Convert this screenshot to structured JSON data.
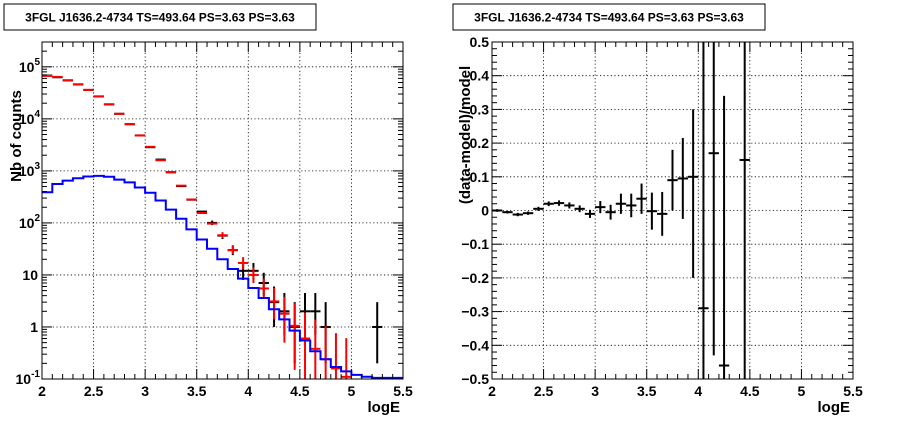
{
  "chart_data": [
    {
      "type": "line",
      "title": "3FGL J1636.2-4734 TS=493.64 PS=3.63 PS=3.63",
      "xlabel": "logE",
      "ylabel": "Nb of counts",
      "xlim": [
        2,
        5.5
      ],
      "ylim": [
        0.1,
        300000
      ],
      "log_y": true,
      "grid": true,
      "x_ticks": [
        "2",
        "2.5",
        "3",
        "3.5",
        "4",
        "4.5",
        "5",
        "5.5"
      ],
      "y_ticks": [
        "10^{-1}",
        "1",
        "10",
        "10^{2}",
        "10^{3}",
        "10^{4}",
        "10^{5}"
      ],
      "series": [
        {
          "color": "#000000",
          "style": "errorbars",
          "x": [
            2.05,
            2.15,
            2.25,
            2.35,
            2.45,
            2.55,
            2.65,
            2.75,
            2.85,
            2.95,
            3.05,
            3.15,
            3.25,
            3.35,
            3.45,
            3.55,
            3.65,
            3.75,
            3.85,
            3.95,
            4.05,
            4.15,
            4.25,
            4.35,
            4.45,
            4.55,
            4.65,
            4.75,
            5.25
          ],
          "y": [
            68000,
            63000,
            55000,
            46000,
            36000,
            27000,
            19000,
            12500,
            7900,
            4800,
            2850,
            1650,
            940,
            510,
            280,
            165,
            100,
            57,
            30,
            12,
            12,
            7,
            3,
            2,
            1,
            2,
            2,
            1,
            1
          ],
          "err_lo": [
            0,
            0,
            0,
            0,
            0,
            0,
            0,
            0,
            0,
            0,
            0,
            0,
            0,
            0,
            0,
            0,
            9,
            8,
            6,
            4,
            4,
            3,
            2,
            1.3,
            0.8,
            1.3,
            1.3,
            0.8,
            0.8
          ],
          "err_hi": [
            0,
            0,
            0,
            0,
            0,
            0,
            0,
            0,
            0,
            0,
            0,
            0,
            0,
            0,
            0,
            0,
            11,
            9,
            7,
            5,
            5,
            4,
            3,
            2.5,
            2,
            2.5,
            2.5,
            2,
            2
          ]
        },
        {
          "color": "#ff0000",
          "style": "errorbars",
          "x": [
            2.05,
            2.15,
            2.25,
            2.35,
            2.45,
            2.55,
            2.65,
            2.75,
            2.85,
            2.95,
            3.05,
            3.15,
            3.25,
            3.35,
            3.45,
            3.55,
            3.65,
            3.75,
            3.85,
            3.95,
            4.05,
            4.15,
            4.25,
            4.35,
            4.45,
            4.55,
            4.65,
            4.75,
            4.85,
            4.95
          ],
          "y": [
            67000,
            64000,
            55000,
            46000,
            36000,
            27000,
            19000,
            12500,
            7900,
            4800,
            2900,
            1600,
            950,
            520,
            280,
            155,
            97,
            58,
            30,
            17,
            10,
            5.5,
            3.1,
            1.8,
            1.05,
            0.6,
            0.38,
            0.24,
            0.16,
            0.11
          ],
          "err_lo": [
            0,
            0,
            0,
            0,
            0,
            0,
            0,
            0,
            0,
            0,
            0,
            0,
            0,
            0,
            0,
            0,
            0,
            7,
            5,
            4,
            3,
            2,
            1.7,
            1.3,
            0.9,
            0.55,
            0.36,
            0.23,
            0.155,
            0.1
          ],
          "err_hi": [
            0,
            0,
            0,
            0,
            0,
            0,
            0,
            0,
            0,
            0,
            0,
            0,
            0,
            0,
            0,
            0,
            0,
            8,
            6,
            5,
            4,
            3,
            2.5,
            2,
            1.8,
            1.3,
            1,
            0.8,
            0.6,
            0.5
          ]
        },
        {
          "color": "#0000ff",
          "style": "step",
          "x": [
            2.05,
            2.15,
            2.25,
            2.35,
            2.45,
            2.55,
            2.65,
            2.75,
            2.85,
            2.95,
            3.05,
            3.15,
            3.25,
            3.35,
            3.45,
            3.55,
            3.65,
            3.75,
            3.85,
            3.95,
            4.05,
            4.15,
            4.25,
            4.35,
            4.45,
            4.55,
            4.65,
            4.75,
            4.85,
            4.95,
            5.05,
            5.15,
            5.25,
            5.35,
            5.45
          ],
          "y": [
            390,
            560,
            650,
            720,
            780,
            800,
            770,
            680,
            600,
            480,
            380,
            270,
            180,
            120,
            75,
            48,
            32,
            20,
            13,
            8.5,
            5.6,
            3.6,
            2.2,
            1.4,
            0.85,
            0.55,
            0.34,
            0.24,
            0.17,
            0.14,
            0.12,
            0.11,
            0.105,
            0.105,
            0.105
          ]
        }
      ]
    },
    {
      "type": "scatter",
      "title": "3FGL J1636.2-4734 TS=493.64 PS=3.63 PS=3.63",
      "xlabel": "logE",
      "ylabel": "(data-model)/model",
      "xlim": [
        2,
        5.5
      ],
      "ylim": [
        -0.5,
        0.5
      ],
      "grid": true,
      "x_ticks": [
        "2",
        "2.5",
        "3",
        "3.5",
        "4",
        "4.5",
        "5",
        "5.5"
      ],
      "y_ticks": [
        "−0.5",
        "−0.4",
        "−0.3",
        "−0.2",
        "−0.1",
        "0",
        "0.1",
        "0.2",
        "0.3",
        "0.4",
        "0.5"
      ],
      "series": [
        {
          "color": "#000000",
          "style": "errorbars",
          "x": [
            2.05,
            2.15,
            2.25,
            2.35,
            2.45,
            2.55,
            2.65,
            2.75,
            2.85,
            2.95,
            3.05,
            3.15,
            3.25,
            3.35,
            3.45,
            3.55,
            3.65,
            3.75,
            3.85,
            3.95,
            4.05,
            4.15,
            4.25,
            4.45
          ],
          "y": [
            0.0,
            -0.005,
            -0.012,
            -0.008,
            0.005,
            0.02,
            0.022,
            0.015,
            0.005,
            -0.01,
            0.01,
            -0.005,
            0.02,
            0.015,
            0.035,
            -0.002,
            -0.01,
            0.09,
            0.095,
            0.1,
            -0.29,
            0.17,
            -0.46,
            0.15
          ],
          "err_lo": [
            0.004,
            0.004,
            0.005,
            0.005,
            0.006,
            0.007,
            0.008,
            0.009,
            0.01,
            0.012,
            0.018,
            0.022,
            0.03,
            0.035,
            0.045,
            0.055,
            0.065,
            0.09,
            0.12,
            0.3,
            0.3,
            0.6,
            0.5,
            0.8
          ],
          "err_hi": [
            0.004,
            0.004,
            0.005,
            0.005,
            0.006,
            0.007,
            0.008,
            0.009,
            0.01,
            0.012,
            0.018,
            0.022,
            0.03,
            0.035,
            0.045,
            0.055,
            0.065,
            0.09,
            0.12,
            0.2,
            0.8,
            0.8,
            0.8,
            0.8
          ]
        }
      ]
    }
  ]
}
